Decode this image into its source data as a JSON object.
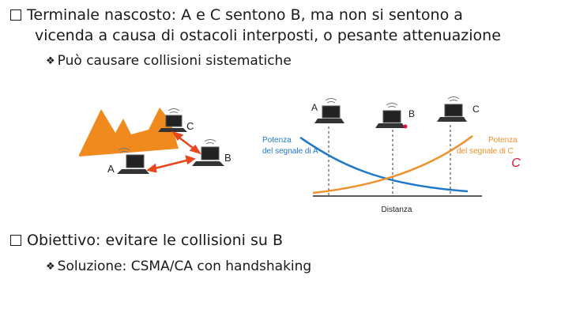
{
  "bullets": {
    "b1_line1": "Terminale nascosto: A e C sentono B, ma non si sentono a",
    "b1_line2": "vicenda a causa di ostacoli interposti, o pesante attenuazione",
    "b1_sub": "Può causare collisioni sistematiche",
    "b2": "Obiettivo: evitare le collisioni su B",
    "b2_sub": "Soluzione: CSMA/CA con handshaking"
  },
  "left_figure": {
    "label_a": "A",
    "label_b": "B",
    "label_c": "C"
  },
  "right_figure": {
    "label_a": "A",
    "label_b": "B",
    "label_c": "C",
    "power_a_line1": "Potenza",
    "power_a_line2": "del segnale di A",
    "power_c_line1": "Potenza",
    "power_c_line2": "del segnale di C",
    "handwritten_c": "C",
    "x_axis_label": "Distanza"
  },
  "colors": {
    "mountain": "#f08a1e",
    "arrow": "#e8461c",
    "curve_a": "#1f77c9",
    "curve_c": "#f0902a",
    "handwriting": "#e0123a"
  }
}
